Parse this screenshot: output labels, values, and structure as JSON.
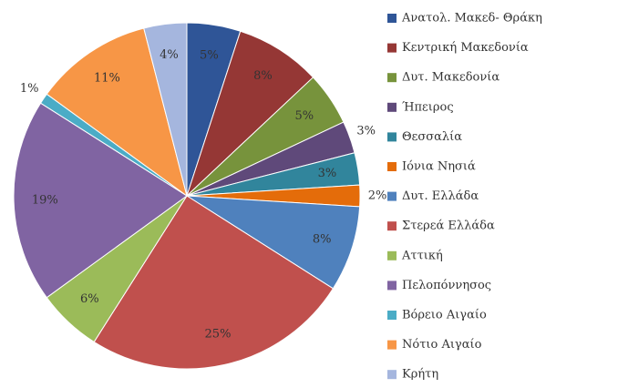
{
  "chart_data": {
    "type": "pie",
    "categories": [
      "Ανατολ. Μακεδ- Θράκη",
      "Κεντρική Μακεδονία",
      "Δυτ. Μακεδονία",
      "Ήπειρος",
      "Θεσσαλία",
      "Ιόνια Νησιά",
      "Δυτ. Ελλάδα",
      "Στερεά Ελλάδα",
      "Αττική",
      "Πελοπόννησος",
      "Βόρειο Αιγαίο",
      "Νότιο Αιγαίο",
      "Κρήτη"
    ],
    "values": [
      5,
      8,
      5,
      3,
      3,
      2,
      8,
      25,
      6,
      19,
      1,
      11,
      4
    ],
    "value_labels": [
      "5%",
      "8%",
      "5%",
      "3%",
      "3%",
      "2%",
      "8%",
      "25%",
      "6%",
      "19%",
      "1%",
      "11%",
      "4%"
    ],
    "colors": [
      "#2f5597",
      "#953735",
      "#77933c",
      "#5f497a",
      "#31859c",
      "#e46c0a",
      "#4f81bd",
      "#c0504d",
      "#9bbb59",
      "#8064a2",
      "#4bacc6",
      "#f79646",
      "#a5b6de"
    ],
    "legend": "right"
  }
}
